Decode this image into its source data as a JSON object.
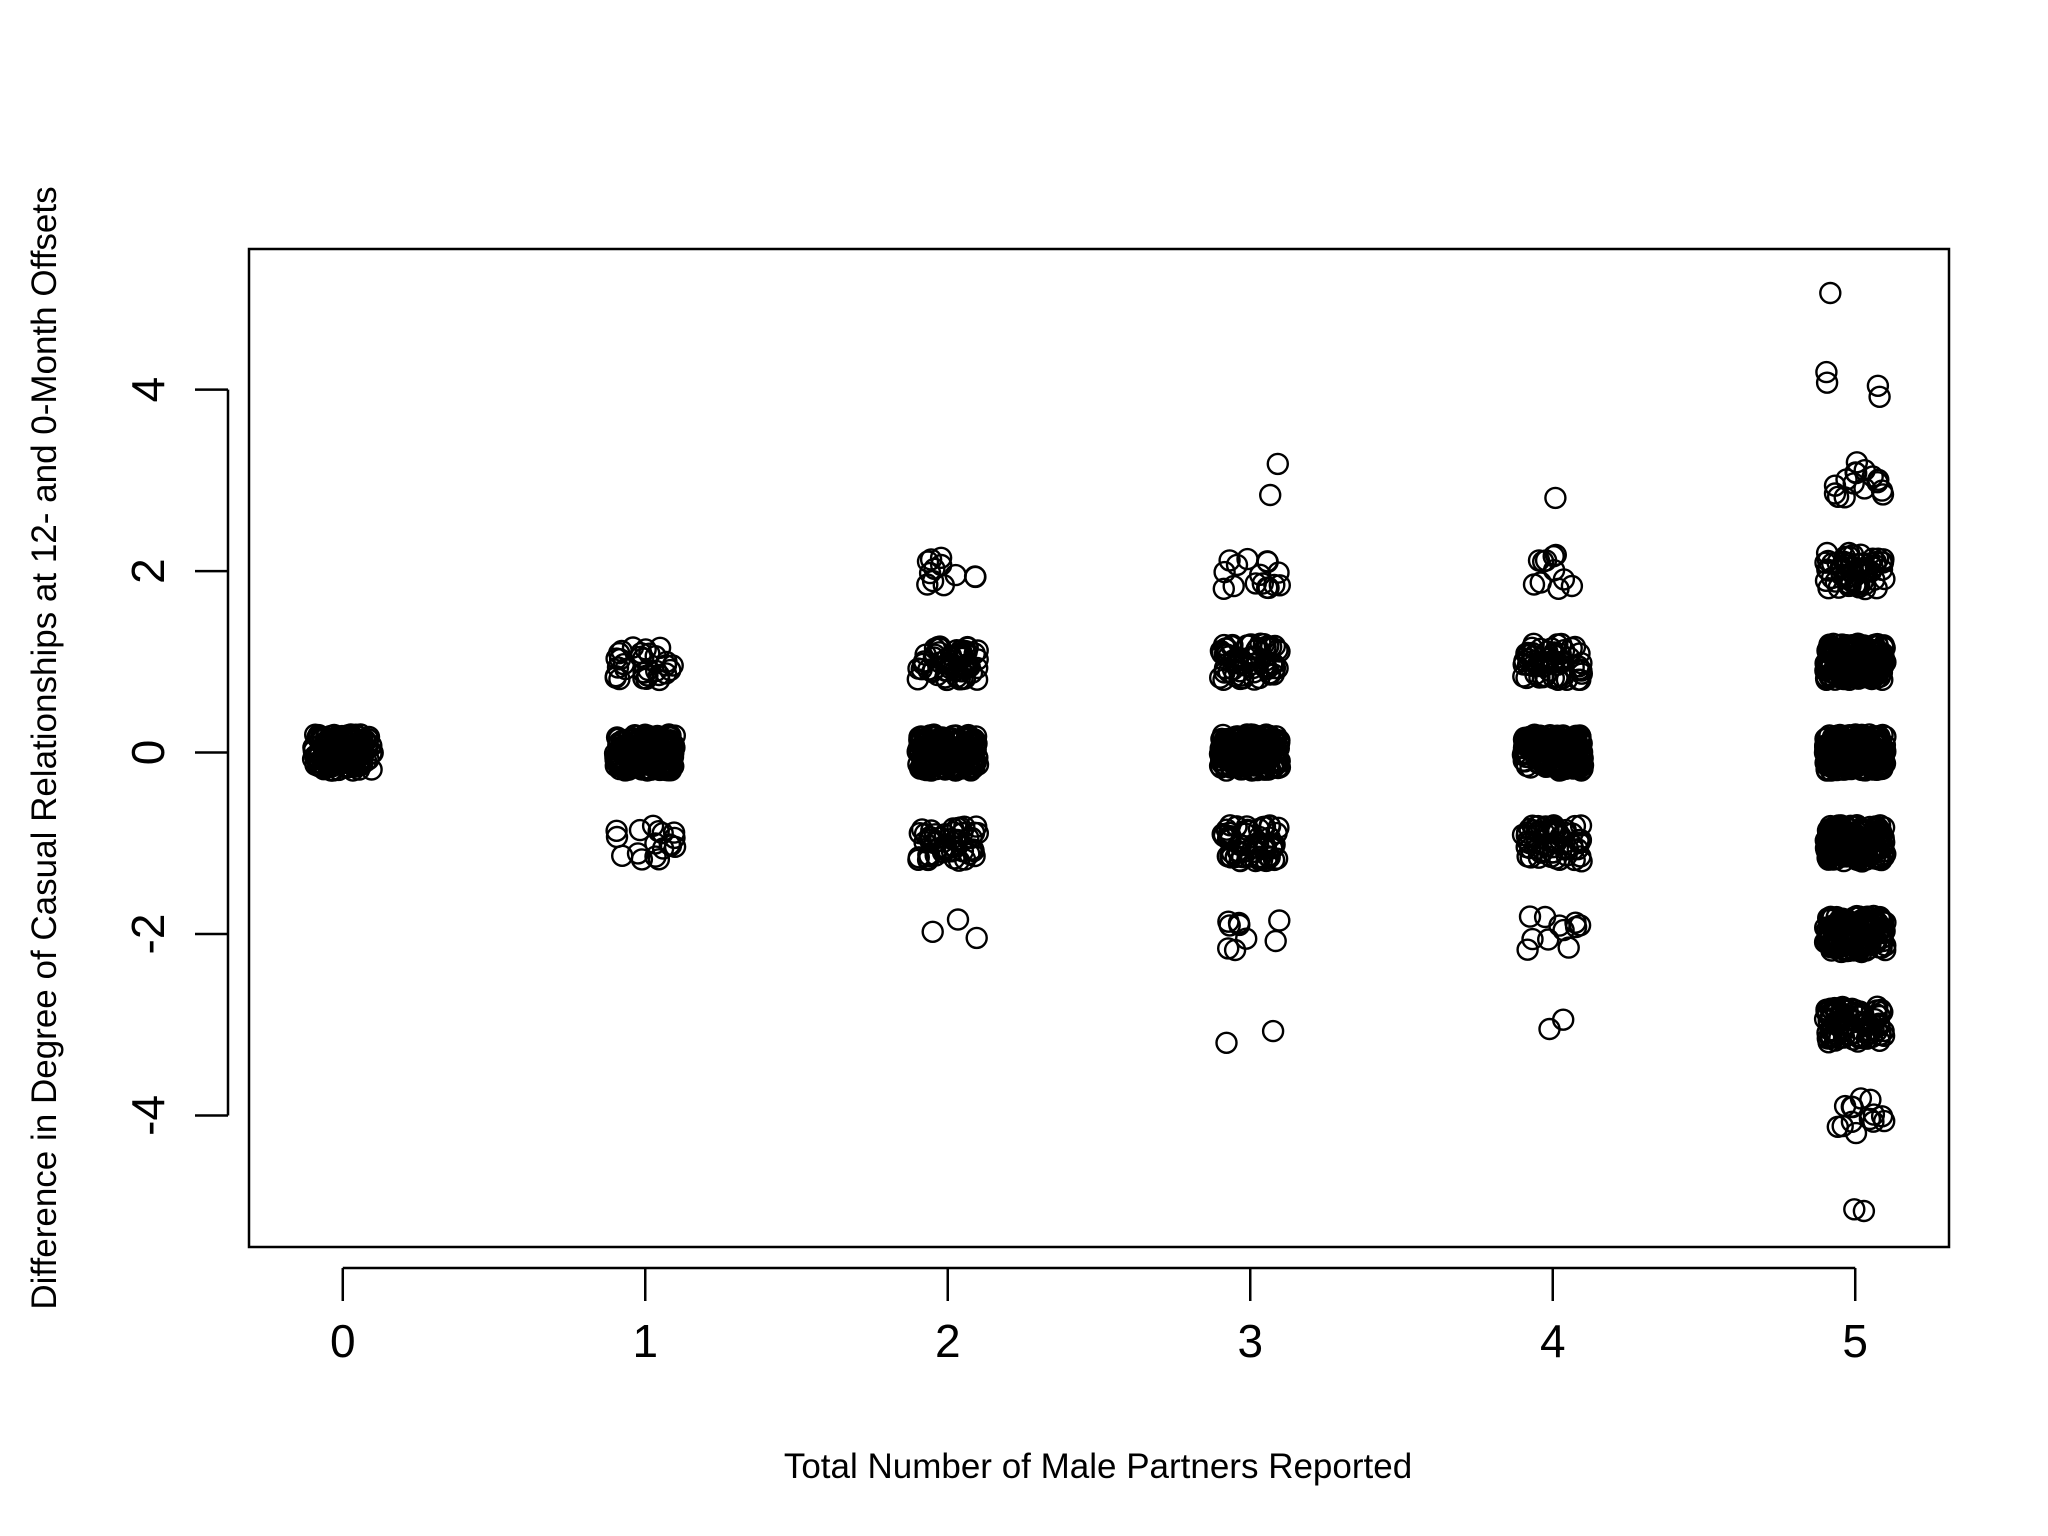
{
  "chart_data": {
    "type": "scatter",
    "title": "",
    "xlabel": "Total Number of Male Partners Reported",
    "ylabel": "Difference in Degree of Casual Relationships at 12- and 0-Month Offsets",
    "xlim": [
      -0.31,
      5.31
    ],
    "ylim": [
      -5.45,
      5.55
    ],
    "x_ticks": [
      0,
      1,
      2,
      3,
      4,
      5
    ],
    "y_ticks": [
      -4,
      -2,
      0,
      2,
      4
    ],
    "marker": "open-circle",
    "jitter": "horizontal and vertical jitter (about ±0.1 in x, ±0.2 in y)",
    "grid": false,
    "legend": "none",
    "colors": {
      "points": "#000000",
      "axes": "#000000",
      "background": "#ffffff"
    },
    "groups": [
      {
        "x": 0,
        "clusters": [
          {
            "y": 0,
            "count": 160
          }
        ]
      },
      {
        "x": 1,
        "clusters": [
          {
            "y": -1,
            "count": 18
          },
          {
            "y": 0,
            "count": 200
          },
          {
            "y": 1,
            "count": 32
          }
        ]
      },
      {
        "x": 2,
        "clusters": [
          {
            "y": -2,
            "count": 3
          },
          {
            "y": -1,
            "count": 50
          },
          {
            "y": 0,
            "count": 220
          },
          {
            "y": 1,
            "count": 65
          },
          {
            "y": 2,
            "count": 12
          }
        ]
      },
      {
        "x": 3,
        "clusters": [
          {
            "y": -3,
            "count": 2
          },
          {
            "y": -2,
            "count": 9
          },
          {
            "y": -1,
            "count": 60
          },
          {
            "y": 0,
            "count": 230
          },
          {
            "y": 1,
            "count": 60
          },
          {
            "y": 2,
            "count": 16
          },
          {
            "y": 3,
            "count": 2
          }
        ]
      },
      {
        "x": 4,
        "clusters": [
          {
            "y": -3,
            "count": 2
          },
          {
            "y": -2,
            "count": 11
          },
          {
            "y": -1,
            "count": 60
          },
          {
            "y": 0,
            "count": 200
          },
          {
            "y": 1,
            "count": 60
          },
          {
            "y": 2,
            "count": 11
          },
          {
            "y": 3,
            "count": 1
          }
        ]
      },
      {
        "x": 5,
        "clusters": [
          {
            "y": -5,
            "count": 2
          },
          {
            "y": -4,
            "count": 14
          },
          {
            "y": -3,
            "count": 80
          },
          {
            "y": -2,
            "count": 160
          },
          {
            "y": -1,
            "count": 200
          },
          {
            "y": 0,
            "count": 280
          },
          {
            "y": 1,
            "count": 220
          },
          {
            "y": 2,
            "count": 60
          },
          {
            "y": 3,
            "count": 16
          },
          {
            "y": 4,
            "count": 4
          },
          {
            "y": 5,
            "count": 1
          }
        ]
      }
    ]
  }
}
